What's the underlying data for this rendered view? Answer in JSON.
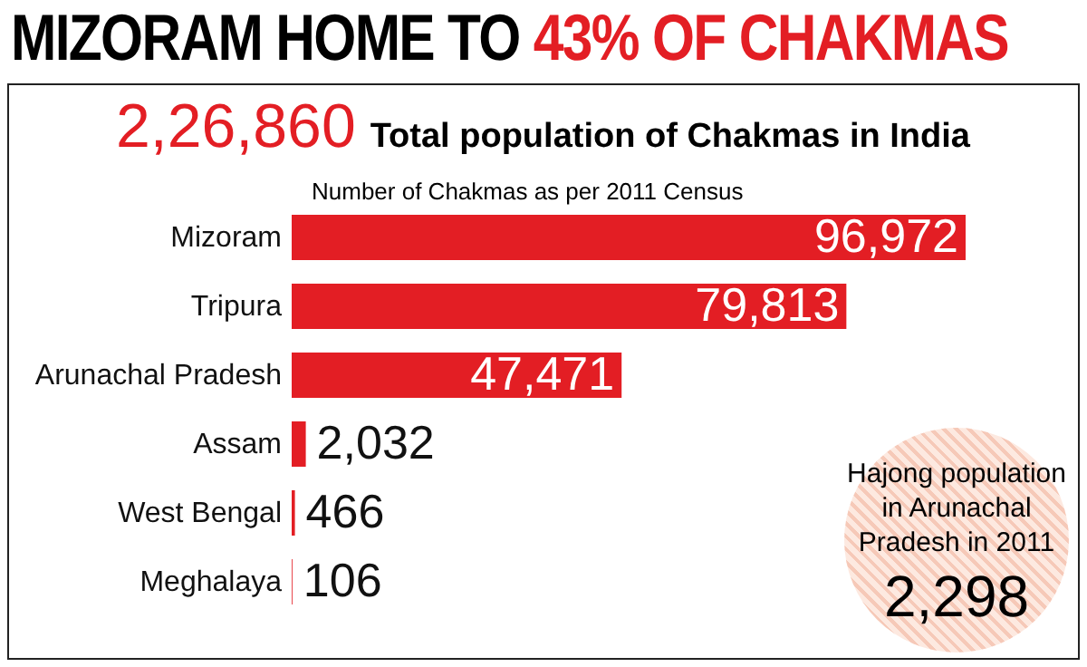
{
  "chart_data": {
    "type": "bar",
    "orientation": "horizontal",
    "title": "MIZORAM HOME TO 43% OF CHAKMAS",
    "subtitle": "2,26,860 Total population of Chakmas in India",
    "categories": [
      "Mizoram",
      "Tripura",
      "Arunachal Pradesh",
      "Assam",
      "West Bengal",
      "Meghalaya"
    ],
    "values": [
      96972,
      79813,
      47471,
      2032,
      466,
      106
    ],
    "color": "#e31e24",
    "value_labels": [
      "96,972",
      "79,813",
      "47,471",
      "2,032",
      "466",
      "106"
    ],
    "annotations": [
      "Number of Chakmas as per 2011 Census",
      "Hajong population in Arunachal Pradesh in 2011",
      "2,298"
    ]
  }
}
